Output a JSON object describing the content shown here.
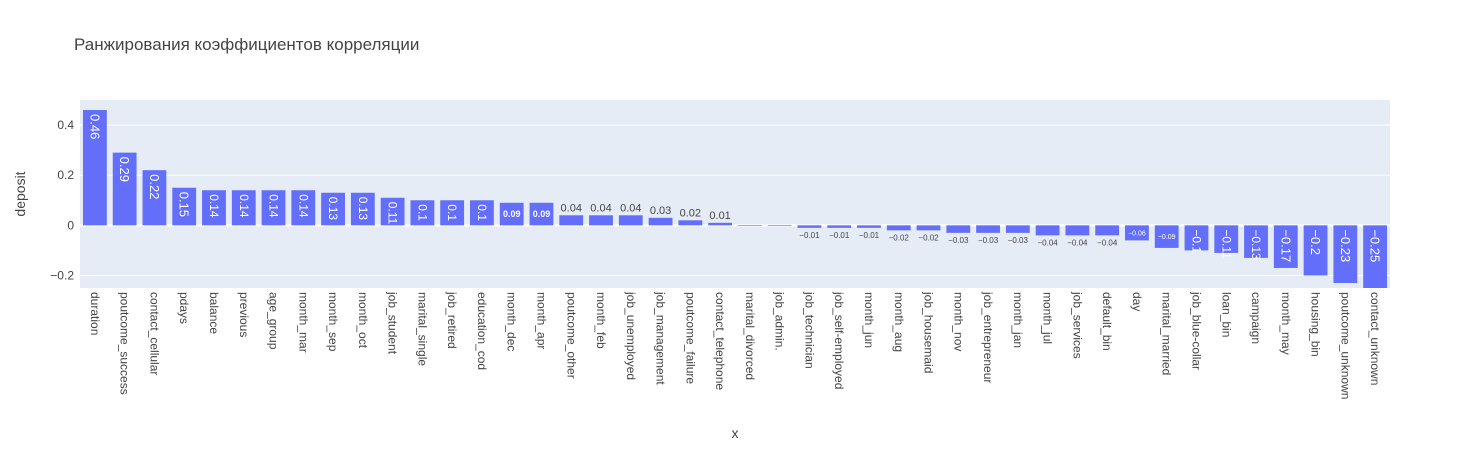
{
  "chart_data": {
    "type": "bar",
    "title": "Ранжирования коэффициентов корреляции",
    "xlabel": "x",
    "ylabel": "deposit",
    "ylim": [
      -0.25,
      0.5
    ],
    "yticks": [
      -0.2,
      0,
      0.2,
      0.4
    ],
    "ytick_labels": [
      "−0.2",
      "0",
      "0.2",
      "0.4"
    ],
    "bar_color": "#636efa",
    "plot_bg": "#e5ecf6",
    "grid_color": "#ffffff",
    "categories": [
      "duration",
      "poutcome_success",
      "contact_cellular",
      "pdays",
      "balance",
      "previous",
      "age_group",
      "month_mar",
      "month_sep",
      "month_oct",
      "job_student",
      "marital_single",
      "job_retired",
      "education_cod",
      "month_dec",
      "month_apr",
      "poutcome_other",
      "month_feb",
      "job_unemployed",
      "job_management",
      "poutcome_failure",
      "contact_telephone",
      "marital_divorced",
      "job_admin.",
      "job_technician",
      "job_self-employed",
      "month_jun",
      "month_aug",
      "job_housemaid",
      "month_nov",
      "job_entrepreneur",
      "month_jan",
      "month_jul",
      "job_services",
      "default_bin",
      "day",
      "marital_married",
      "job_blue-collar",
      "loan_bin",
      "campaign",
      "month_may",
      "housing_bin",
      "poutcome_unknown",
      "contact_unknown"
    ],
    "values": [
      0.46,
      0.29,
      0.22,
      0.15,
      0.14,
      0.14,
      0.14,
      0.14,
      0.13,
      0.13,
      0.11,
      0.1,
      0.1,
      0.1,
      0.09,
      0.09,
      0.04,
      0.04,
      0.04,
      0.03,
      0.02,
      0.01,
      0.0,
      0.0,
      -0.01,
      -0.01,
      -0.01,
      -0.02,
      -0.02,
      -0.03,
      -0.03,
      -0.03,
      -0.04,
      -0.04,
      -0.04,
      -0.06,
      -0.09,
      -0.1,
      -0.11,
      -0.13,
      -0.17,
      -0.2,
      -0.23,
      -0.25
    ],
    "value_labels": [
      "0.46",
      "0.29",
      "0.22",
      "0.15",
      "0.14",
      "0.14",
      "0.14",
      "0.14",
      "0.13",
      "0.13",
      "0.11",
      "0.1",
      "0.1",
      "0.1",
      "0.09",
      "0.09",
      "0.04",
      "0.04",
      "0.04",
      "0.03",
      "0.02",
      "0.01",
      "",
      "",
      "−0.01",
      "−0.01",
      "−0.01",
      "−0.02",
      "−0.02",
      "−0.03",
      "−0.03",
      "−0.03",
      "−0.04",
      "−0.04",
      "−0.04",
      "−0.06",
      "−0.09",
      "−0.1",
      "−0.11",
      "−0.13",
      "−0.17",
      "−0.2",
      "−0.23",
      "−0.25"
    ]
  }
}
